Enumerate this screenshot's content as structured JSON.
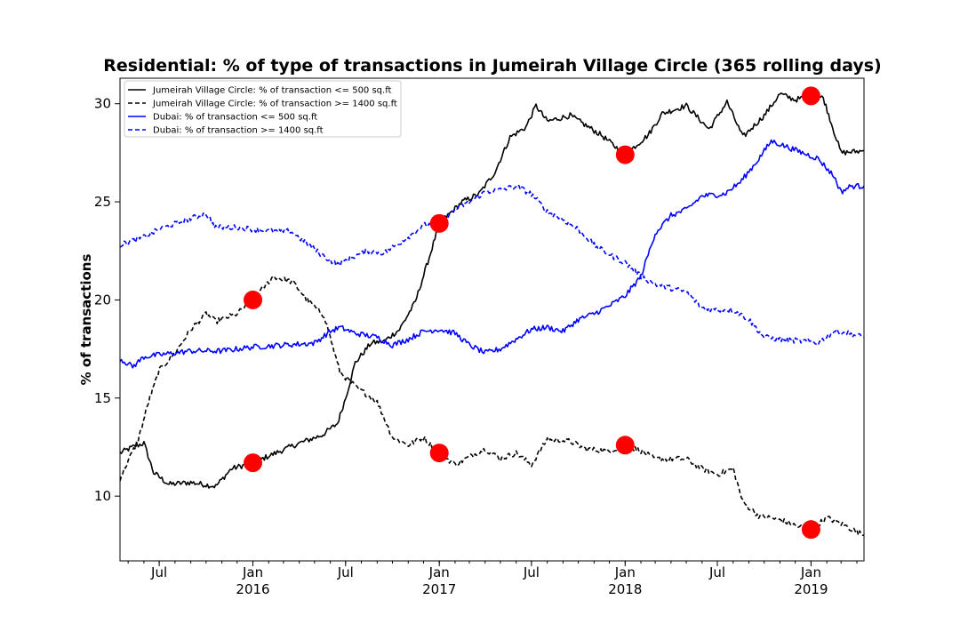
{
  "chart_data": {
    "type": "line",
    "title": "Residential: % of type of transactions in Jumeirah Village Circle (365 rolling days)",
    "xlabel": "",
    "ylabel": "% of transactions",
    "ylim": [
      6.7,
      31.3
    ],
    "xlim": [
      "2015-04-15",
      "2019-04-15"
    ],
    "yticks": [
      10,
      15,
      20,
      25,
      30
    ],
    "xticks": [
      {
        "date": "2015-07-01",
        "label": "Jul",
        "sublabel": ""
      },
      {
        "date": "2016-01-01",
        "label": "Jan",
        "sublabel": "2016"
      },
      {
        "date": "2016-07-01",
        "label": "Jul",
        "sublabel": ""
      },
      {
        "date": "2017-01-01",
        "label": "Jan",
        "sublabel": "2017"
      },
      {
        "date": "2017-07-01",
        "label": "Jul",
        "sublabel": ""
      },
      {
        "date": "2018-01-01",
        "label": "Jan",
        "sublabel": "2018"
      },
      {
        "date": "2018-07-01",
        "label": "Jul",
        "sublabel": ""
      },
      {
        "date": "2019-01-01",
        "label": "Jan",
        "sublabel": "2019"
      }
    ],
    "legend_position": "top-left",
    "grid": false,
    "series": [
      {
        "name": "Jumeirah Village Circle: % of transaction <= 500 sq.ft",
        "color": "#000000",
        "dash": "solid",
        "points": [
          [
            "2015-04-15",
            12.2
          ],
          [
            "2015-05-10",
            12.5
          ],
          [
            "2015-06-01",
            12.7
          ],
          [
            "2015-06-20",
            11.2
          ],
          [
            "2015-07-20",
            10.6
          ],
          [
            "2015-09-01",
            10.7
          ],
          [
            "2015-10-20",
            10.5
          ],
          [
            "2015-11-20",
            11.4
          ],
          [
            "2016-01-01",
            11.7
          ],
          [
            "2016-02-15",
            12.2
          ],
          [
            "2016-04-01",
            12.7
          ],
          [
            "2016-05-15",
            13.1
          ],
          [
            "2016-06-15",
            13.7
          ],
          [
            "2016-07-01",
            15.0
          ],
          [
            "2016-07-20",
            16.8
          ],
          [
            "2016-08-20",
            17.8
          ],
          [
            "2016-09-15",
            17.9
          ],
          [
            "2016-10-15",
            18.5
          ],
          [
            "2016-11-15",
            19.9
          ],
          [
            "2016-12-15",
            22.4
          ],
          [
            "2017-01-01",
            23.9
          ],
          [
            "2017-02-15",
            25.0
          ],
          [
            "2017-03-20",
            25.4
          ],
          [
            "2017-04-20",
            26.5
          ],
          [
            "2017-05-20",
            28.3
          ],
          [
            "2017-06-20",
            28.8
          ],
          [
            "2017-07-10",
            29.9
          ],
          [
            "2017-08-01",
            29.1
          ],
          [
            "2017-09-15",
            29.4
          ],
          [
            "2017-11-15",
            28.4
          ],
          [
            "2018-01-01",
            27.4
          ],
          [
            "2018-02-15",
            28.4
          ],
          [
            "2018-03-15",
            29.5
          ],
          [
            "2018-05-01",
            29.9
          ],
          [
            "2018-06-15",
            28.7
          ],
          [
            "2018-07-20",
            30.1
          ],
          [
            "2018-08-20",
            28.3
          ],
          [
            "2018-10-01",
            29.4
          ],
          [
            "2018-11-01",
            30.5
          ],
          [
            "2018-12-01",
            30.2
          ],
          [
            "2019-01-01",
            30.4
          ],
          [
            "2019-01-25",
            30.3
          ],
          [
            "2019-02-15",
            28.6
          ],
          [
            "2019-03-01",
            27.5
          ],
          [
            "2019-04-15",
            27.6
          ]
        ]
      },
      {
        "name": "Jumeirah Village Circle: % of transaction >= 1400 sq.ft",
        "color": "#000000",
        "dash": "dashed",
        "points": [
          [
            "2015-04-15",
            10.9
          ],
          [
            "2015-05-01",
            11.8
          ],
          [
            "2015-05-20",
            12.8
          ],
          [
            "2015-06-10",
            14.8
          ],
          [
            "2015-07-01",
            16.4
          ],
          [
            "2015-08-01",
            17.3
          ],
          [
            "2015-09-01",
            18.5
          ],
          [
            "2015-10-01",
            19.3
          ],
          [
            "2015-10-20",
            18.9
          ],
          [
            "2015-12-01",
            19.3
          ],
          [
            "2016-01-01",
            20.0
          ],
          [
            "2016-02-10",
            21.2
          ],
          [
            "2016-03-20",
            20.9
          ],
          [
            "2016-04-20",
            19.9
          ],
          [
            "2016-05-20",
            19.2
          ],
          [
            "2016-06-20",
            16.3
          ],
          [
            "2016-07-20",
            15.6
          ],
          [
            "2016-09-01",
            14.8
          ],
          [
            "2016-10-01",
            13.0
          ],
          [
            "2016-11-01",
            12.6
          ],
          [
            "2016-12-01",
            13.0
          ],
          [
            "2017-01-01",
            12.2
          ],
          [
            "2017-02-01",
            11.6
          ],
          [
            "2017-03-01",
            12.0
          ],
          [
            "2017-04-01",
            12.4
          ],
          [
            "2017-05-01",
            11.9
          ],
          [
            "2017-06-01",
            12.2
          ],
          [
            "2017-07-01",
            11.6
          ],
          [
            "2017-08-01",
            12.9
          ],
          [
            "2017-09-15",
            12.8
          ],
          [
            "2017-10-15",
            12.4
          ],
          [
            "2017-12-01",
            12.3
          ],
          [
            "2018-01-01",
            12.6
          ],
          [
            "2018-02-01",
            12.3
          ],
          [
            "2018-03-01",
            11.9
          ],
          [
            "2018-05-01",
            11.9
          ],
          [
            "2018-06-01",
            11.4
          ],
          [
            "2018-07-01",
            11.1
          ],
          [
            "2018-08-01",
            11.4
          ],
          [
            "2018-08-20",
            9.7
          ],
          [
            "2018-09-20",
            9.0
          ],
          [
            "2018-11-01",
            8.8
          ],
          [
            "2018-12-01",
            8.5
          ],
          [
            "2019-01-01",
            8.3
          ],
          [
            "2019-02-01",
            8.9
          ],
          [
            "2019-03-01",
            8.6
          ],
          [
            "2019-04-15",
            8.0
          ]
        ]
      },
      {
        "name": "Dubai: % of transaction <= 500 sq.ft",
        "color": "#0000ff",
        "dash": "solid",
        "points": [
          [
            "2015-04-15",
            17.0
          ],
          [
            "2015-05-10",
            16.6
          ],
          [
            "2015-06-01",
            17.1
          ],
          [
            "2015-07-01",
            17.2
          ],
          [
            "2015-09-01",
            17.4
          ],
          [
            "2015-11-01",
            17.4
          ],
          [
            "2016-01-01",
            17.6
          ],
          [
            "2016-03-01",
            17.7
          ],
          [
            "2016-05-01",
            17.8
          ],
          [
            "2016-06-01",
            18.4
          ],
          [
            "2016-06-20",
            18.6
          ],
          [
            "2016-07-20",
            18.3
          ],
          [
            "2016-09-01",
            18.1
          ],
          [
            "2016-10-01",
            17.7
          ],
          [
            "2016-11-01",
            18.0
          ],
          [
            "2016-12-01",
            18.4
          ],
          [
            "2017-01-01",
            18.5
          ],
          [
            "2017-02-01",
            18.3
          ],
          [
            "2017-03-01",
            17.7
          ],
          [
            "2017-04-01",
            17.3
          ],
          [
            "2017-05-01",
            17.5
          ],
          [
            "2017-06-01",
            18.0
          ],
          [
            "2017-07-01",
            18.5
          ],
          [
            "2017-08-01",
            18.6
          ],
          [
            "2017-09-01",
            18.4
          ],
          [
            "2017-10-01",
            19.0
          ],
          [
            "2017-11-01",
            19.3
          ],
          [
            "2017-12-01",
            19.7
          ],
          [
            "2018-01-01",
            20.2
          ],
          [
            "2018-02-01",
            21.2
          ],
          [
            "2018-03-01",
            23.4
          ],
          [
            "2018-04-01",
            24.3
          ],
          [
            "2018-05-01",
            24.6
          ],
          [
            "2018-06-01",
            25.3
          ],
          [
            "2018-07-15",
            25.4
          ],
          [
            "2018-08-15",
            26.0
          ],
          [
            "2018-09-15",
            27.0
          ],
          [
            "2018-10-15",
            28.1
          ],
          [
            "2018-11-15",
            27.8
          ],
          [
            "2018-12-15",
            27.5
          ],
          [
            "2019-01-15",
            27.2
          ],
          [
            "2019-02-15",
            26.3
          ],
          [
            "2019-03-01",
            25.5
          ],
          [
            "2019-03-20",
            25.8
          ],
          [
            "2019-04-15",
            25.8
          ]
        ]
      },
      {
        "name": "Dubai: % of transaction >= 1400 sq.ft",
        "color": "#0000ff",
        "dash": "dashed",
        "points": [
          [
            "2015-04-15",
            22.8
          ],
          [
            "2015-06-01",
            23.2
          ],
          [
            "2015-07-01",
            23.6
          ],
          [
            "2015-08-15",
            24.0
          ],
          [
            "2015-10-01",
            24.4
          ],
          [
            "2015-10-20",
            23.7
          ],
          [
            "2015-12-01",
            23.7
          ],
          [
            "2016-01-01",
            23.6
          ],
          [
            "2016-02-01",
            23.5
          ],
          [
            "2016-03-15",
            23.5
          ],
          [
            "2016-04-15",
            22.9
          ],
          [
            "2016-05-15",
            22.3
          ],
          [
            "2016-06-15",
            21.8
          ],
          [
            "2016-07-15",
            22.2
          ],
          [
            "2016-08-15",
            22.5
          ],
          [
            "2016-09-15",
            22.4
          ],
          [
            "2016-11-01",
            23.2
          ],
          [
            "2016-12-01",
            23.8
          ],
          [
            "2017-01-01",
            23.9
          ],
          [
            "2017-02-01",
            24.6
          ],
          [
            "2017-03-01",
            25.0
          ],
          [
            "2017-04-01",
            25.5
          ],
          [
            "2017-05-01",
            25.6
          ],
          [
            "2017-06-01",
            25.8
          ],
          [
            "2017-07-01",
            25.4
          ],
          [
            "2017-08-01",
            24.5
          ],
          [
            "2017-09-01",
            24.1
          ],
          [
            "2017-10-01",
            23.6
          ],
          [
            "2017-11-01",
            22.8
          ],
          [
            "2017-12-01",
            22.3
          ],
          [
            "2018-01-01",
            21.9
          ],
          [
            "2018-02-01",
            21.2
          ],
          [
            "2018-03-01",
            20.8
          ],
          [
            "2018-04-01",
            20.6
          ],
          [
            "2018-05-01",
            20.4
          ],
          [
            "2018-06-01",
            19.6
          ],
          [
            "2018-07-01",
            19.5
          ],
          [
            "2018-08-01",
            19.5
          ],
          [
            "2018-09-01",
            19.0
          ],
          [
            "2018-10-01",
            18.1
          ],
          [
            "2018-11-01",
            18.0
          ],
          [
            "2018-12-15",
            17.9
          ],
          [
            "2019-01-15",
            17.8
          ],
          [
            "2019-02-15",
            18.4
          ],
          [
            "2019-03-15",
            18.3
          ],
          [
            "2019-04-15",
            18.1
          ]
        ]
      }
    ],
    "markers": {
      "color": "#ff0000",
      "points": [
        [
          "2016-01-01",
          20.0
        ],
        [
          "2016-01-01",
          11.7
        ],
        [
          "2017-01-01",
          23.9
        ],
        [
          "2017-01-01",
          12.2
        ],
        [
          "2018-01-01",
          27.4
        ],
        [
          "2018-01-01",
          12.6
        ],
        [
          "2019-01-01",
          30.4
        ],
        [
          "2019-01-01",
          8.3
        ]
      ]
    }
  }
}
